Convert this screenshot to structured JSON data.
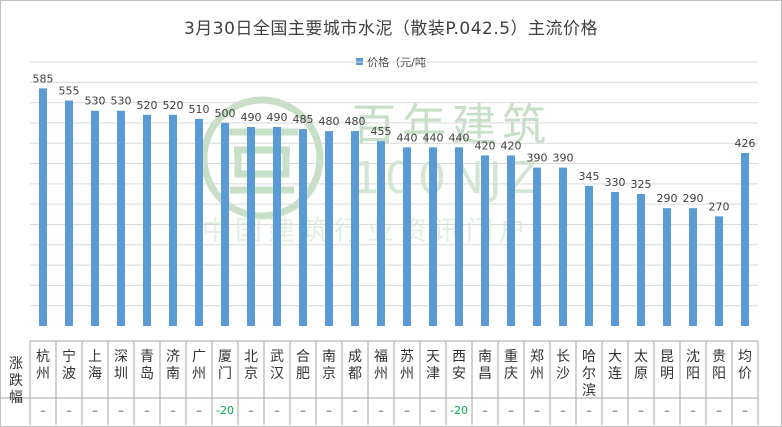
{
  "chart_data": {
    "type": "bar",
    "title": "3月30日全国主要城市水泥（散装P.042.5）主流价格",
    "legend": [
      "价格（元/吨"
    ],
    "legend_position": "top",
    "grid": true,
    "ylim": [
      0,
      650
    ],
    "bar_color": "#5b9bd5",
    "categories": [
      "杭州",
      "宁波",
      "上海",
      "深圳",
      "青岛",
      "济南",
      "广州",
      "厦门",
      "北京",
      "武汉",
      "合肥",
      "南京",
      "成都",
      "福州",
      "苏州",
      "天津",
      "西安",
      "南昌",
      "重庆",
      "郑州",
      "长沙",
      "哈尔滨",
      "大连",
      "太原",
      "昆明",
      "沈阳",
      "贵阳",
      "均价"
    ],
    "series": [
      {
        "name": "价格（元/吨",
        "values": [
          585,
          555,
          530,
          530,
          520,
          520,
          510,
          500,
          490,
          490,
          485,
          480,
          480,
          455,
          440,
          440,
          440,
          420,
          420,
          390,
          390,
          345,
          330,
          325,
          290,
          290,
          270,
          426
        ]
      }
    ]
  },
  "table": {
    "row_label": "涨跌幅",
    "changes": [
      "–",
      "–",
      "–",
      "–",
      "–",
      "–",
      "–",
      "-20",
      "–",
      "–",
      "–",
      "–",
      "–",
      "–",
      "–",
      "–",
      "-20",
      "–",
      "–",
      "–",
      "–",
      "–",
      "–",
      "–",
      "–",
      "–",
      "–",
      "–"
    ]
  },
  "watermark": {
    "brand": "百年建筑",
    "code": "100NJZ",
    "site": "中国建筑行业资讯门户"
  },
  "colors": {
    "watermark": "#c6dfc6",
    "negative": "#00b050",
    "grid": "#d9d9d9"
  }
}
